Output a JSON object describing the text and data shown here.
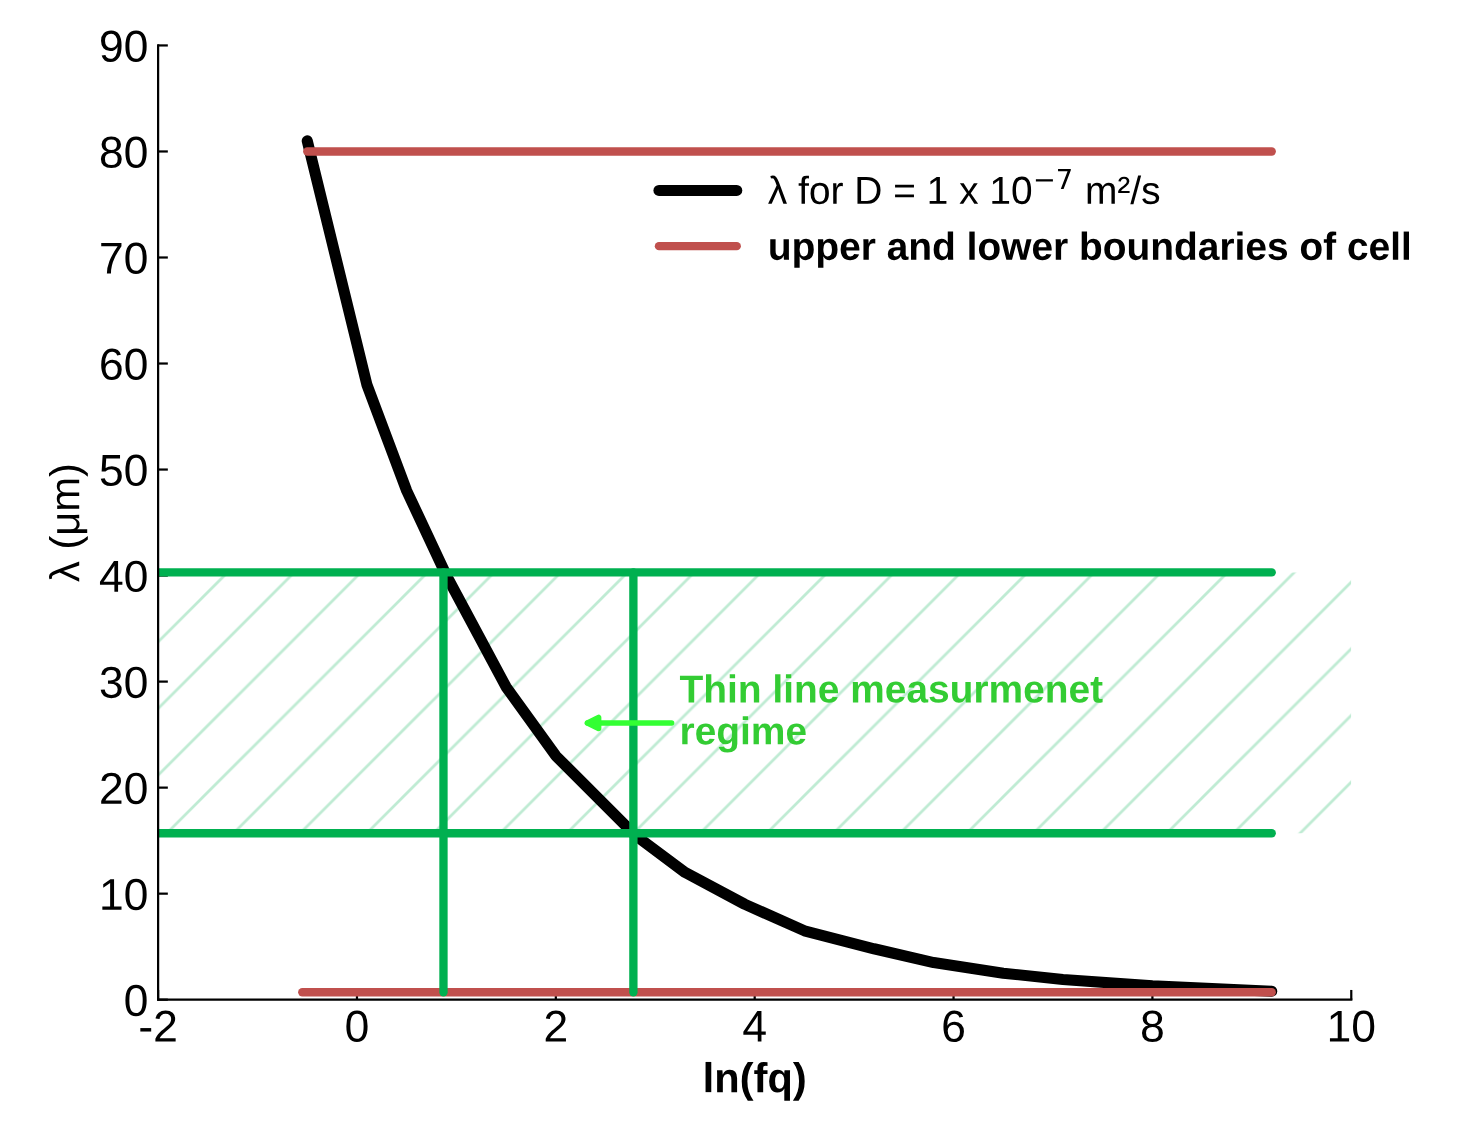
{
  "chart_data": {
    "type": "line",
    "xlabel": "ln(fq)",
    "ylabel": "λ (μm)",
    "xlim": [
      -2,
      10
    ],
    "ylim": [
      0,
      90
    ],
    "xticks": [
      -2,
      0,
      2,
      4,
      6,
      8,
      10
    ],
    "yticks": [
      0,
      10,
      20,
      30,
      40,
      50,
      60,
      70,
      80,
      90
    ],
    "grid": false,
    "legend": "top right",
    "marker": "none",
    "line_style": "solid",
    "series": [
      {
        "name": "λ for D = 1 x 10$^{−7}$ m²/s",
        "color": "#000000",
        "x": [
          -0.5,
          0.1,
          0.5,
          0.9,
          1.5,
          2,
          2.8,
          3.3,
          3.9,
          4.5,
          5.2,
          5.8,
          6.5,
          7.1,
          8,
          9.2
        ],
        "values": [
          81,
          58,
          48,
          40,
          29.5,
          23,
          15.5,
          12,
          9,
          6.5,
          4.8,
          3.5,
          2.5,
          1.9,
          1.3,
          0.8
        ]
      },
      {
        "name": "upper and lower boundaries of cell",
        "color": "#c0504d",
        "x": [
          -0.5,
          9.2
        ],
        "values": [
          80,
          80
        ]
      },
      {
        "color": "#c0504d",
        "x": [
          -0.55,
          9.2
        ],
        "values": [
          0.7,
          0.7
        ]
      },
      {
        "color": "#00b050",
        "x": [
          -2,
          9.2
        ],
        "values": [
          40.3,
          40.3
        ]
      },
      {
        "color": "#00b050",
        "x": [
          -2,
          9.2
        ],
        "values": [
          15.7,
          15.7
        ]
      },
      {
        "color": "#00b050",
        "x": [
          0.87,
          0.87
        ],
        "values": [
          40.3,
          0.7
        ]
      },
      {
        "color": "#00b050",
        "x": [
          2.78,
          2.78
        ],
        "values": [
          40.3,
          0.7
        ]
      }
    ],
    "bands": [
      {
        "axis": "y",
        "from": 15.7,
        "to": 40.3,
        "color": "#00b050"
      }
    ],
    "annotations": [
      "Thin line measurmenet\nregime"
    ]
  }
}
